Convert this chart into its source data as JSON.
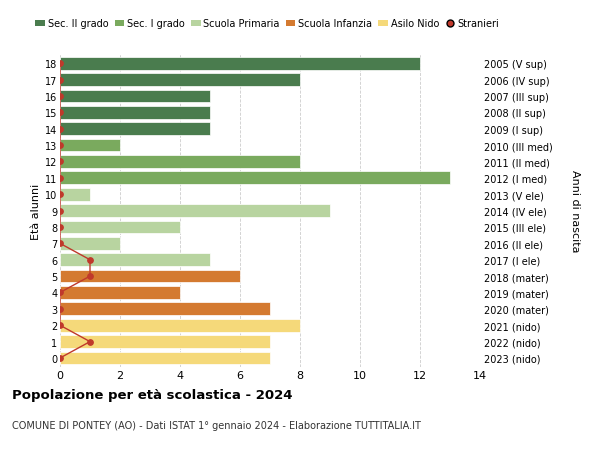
{
  "ages": [
    18,
    17,
    16,
    15,
    14,
    13,
    12,
    11,
    10,
    9,
    8,
    7,
    6,
    5,
    4,
    3,
    2,
    1,
    0
  ],
  "years": [
    "2005 (V sup)",
    "2006 (IV sup)",
    "2007 (III sup)",
    "2008 (II sup)",
    "2009 (I sup)",
    "2010 (III med)",
    "2011 (II med)",
    "2012 (I med)",
    "2013 (V ele)",
    "2014 (IV ele)",
    "2015 (III ele)",
    "2016 (II ele)",
    "2017 (I ele)",
    "2018 (mater)",
    "2019 (mater)",
    "2020 (mater)",
    "2021 (nido)",
    "2022 (nido)",
    "2023 (nido)"
  ],
  "values": [
    12,
    8,
    5,
    5,
    5,
    2,
    8,
    13,
    1,
    9,
    4,
    2,
    5,
    6,
    4,
    7,
    8,
    7,
    7
  ],
  "stranieri": [
    0,
    0,
    0,
    0,
    0,
    0,
    0,
    0,
    0,
    0,
    0,
    0,
    1,
    1,
    0,
    0,
    0,
    1,
    0
  ],
  "bar_colors": [
    "#4a7c4e",
    "#4a7c4e",
    "#4a7c4e",
    "#4a7c4e",
    "#4a7c4e",
    "#7aaa5e",
    "#7aaa5e",
    "#7aaa5e",
    "#b8d4a0",
    "#b8d4a0",
    "#b8d4a0",
    "#b8d4a0",
    "#b8d4a0",
    "#d47a30",
    "#d47a30",
    "#d47a30",
    "#f5d97a",
    "#f5d97a",
    "#f5d97a"
  ],
  "legend_labels": [
    "Sec. II grado",
    "Sec. I grado",
    "Scuola Primaria",
    "Scuola Infanzia",
    "Asilo Nido",
    "Stranieri"
  ],
  "legend_colors": [
    "#4a7c4e",
    "#7aaa5e",
    "#b8d4a0",
    "#d47a30",
    "#f5d97a",
    "#c0392b"
  ],
  "stranieri_color": "#c0392b",
  "title": "Popolazione per età scolastica - 2024",
  "subtitle": "COMUNE DI PONTEY (AO) - Dati ISTAT 1° gennaio 2024 - Elaborazione TUTTITALIA.IT",
  "ylabel_left": "Età alunni",
  "ylabel_right": "Anni di nascita",
  "xlim": [
    0,
    14
  ],
  "xticks": [
    0,
    2,
    4,
    6,
    8,
    10,
    12,
    14
  ],
  "background_color": "#ffffff",
  "grid_color": "#cccccc"
}
